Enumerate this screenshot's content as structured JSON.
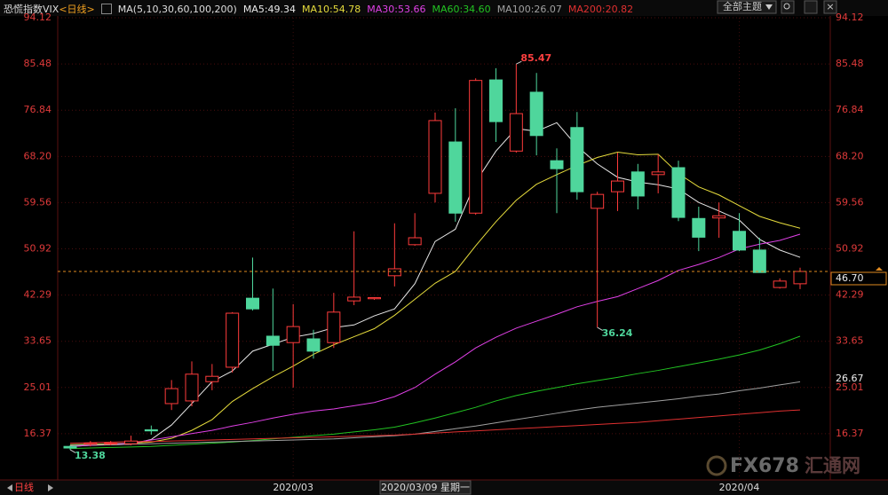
{
  "chart_data": {
    "type": "candlestick",
    "title": "恐慌指数VIX",
    "period": "<日线>",
    "ma_label": "MA(5,10,30,60,100,200)",
    "categories": [
      null,
      null,
      null,
      null,
      null,
      null,
      null,
      null,
      null,
      null,
      null,
      "2020/03",
      null,
      null,
      null,
      null,
      null,
      null,
      null,
      null,
      null,
      null,
      null,
      null,
      null,
      null,
      null,
      null,
      null,
      null,
      null,
      null,
      null,
      "2020/04",
      null,
      null,
      null
    ],
    "cursor_label": "2020/03/09 星期一",
    "candles": {
      "open": [
        14.0,
        14.4,
        14.5,
        14.5,
        17.1,
        22.0,
        22.5,
        26.1,
        28.8,
        41.7,
        34.6,
        33.4,
        34.1,
        33.4,
        41.2,
        41.6,
        45.9,
        51.7,
        61.3,
        70.9,
        57.6,
        82.5,
        69.2,
        80.2,
        67.4,
        73.6,
        58.5,
        61.6,
        65.3,
        64.8,
        66.1,
        56.6,
        56.7,
        54.2,
        50.7,
        43.7,
        44.4
      ],
      "high": [
        14.2,
        15.0,
        15.0,
        16.0,
        17.9,
        26.4,
        29.9,
        29.4,
        39.1,
        49.3,
        43.5,
        40.6,
        35.8,
        42.7,
        54.2,
        41.9,
        55.7,
        57.6,
        76.4,
        77.2,
        82.8,
        84.7,
        85.47,
        83.8,
        69.7,
        76.5,
        61.6,
        68.9,
        66.8,
        68.6,
        67.4,
        58.8,
        59.6,
        57.6,
        53.0,
        45.4,
        47.4
      ],
      "low": [
        13.38,
        14.0,
        14.2,
        14.2,
        16.2,
        20.8,
        21.5,
        24.5,
        27.8,
        39.4,
        28.1,
        25.0,
        30.4,
        32.4,
        40.4,
        41.4,
        43.9,
        51.5,
        59.6,
        56.0,
        57.3,
        70.9,
        68.9,
        68.4,
        57.6,
        60.1,
        36.24,
        58.0,
        58.3,
        61.3,
        56.1,
        50.5,
        53.0,
        50.5,
        46.5,
        43.5,
        43.4
      ],
      "close": [
        13.7,
        14.6,
        14.6,
        15.0,
        16.9,
        24.8,
        27.5,
        27.1,
        38.9,
        39.7,
        32.9,
        36.4,
        31.8,
        39.1,
        41.9,
        41.8,
        47.2,
        53.0,
        74.9,
        57.6,
        82.4,
        74.7,
        76.2,
        72.1,
        65.9,
        61.6,
        61.1,
        63.6,
        60.8,
        65.3,
        56.8,
        53.1,
        57.1,
        50.7,
        46.5,
        44.9,
        46.7
      ]
    },
    "up_color": "#ff3b3b",
    "down_color": "#4fd69c",
    "series": [
      {
        "name": "MA5:49.34",
        "color": "#e8e8e8",
        "values": [
          14.0,
          14.2,
          14.3,
          14.4,
          15.3,
          18.0,
          22.0,
          26.1,
          28.1,
          31.8,
          33.1,
          34.4,
          35.1,
          36.2,
          36.7,
          38.4,
          39.7,
          44.4,
          52.3,
          54.6,
          63.4,
          69.2,
          73.4,
          72.9,
          74.5,
          70.1,
          66.8,
          64.3,
          63.4,
          62.9,
          62.1,
          59.6,
          58.0,
          56.3,
          52.7,
          50.7,
          49.34
        ]
      },
      {
        "name": "MA10:54.78",
        "color": "#e6dc3c",
        "values": [
          14.3,
          14.4,
          14.5,
          14.6,
          14.8,
          15.5,
          17.0,
          19.0,
          22.4,
          24.8,
          27.0,
          29.0,
          31.2,
          33.0,
          34.5,
          36.0,
          38.5,
          41.5,
          44.5,
          46.7,
          51.5,
          56.0,
          60.0,
          63.0,
          64.8,
          66.5,
          68.0,
          69.0,
          68.5,
          68.6,
          65.0,
          62.5,
          61.0,
          59.0,
          57.0,
          55.8,
          54.78
        ]
      },
      {
        "name": "MA30:53.66",
        "color": "#e040e6",
        "values": [
          14.0,
          14.2,
          14.4,
          14.6,
          15.2,
          15.8,
          16.4,
          17.0,
          17.8,
          18.5,
          19.3,
          20.0,
          20.6,
          21.0,
          21.6,
          22.2,
          23.3,
          25.0,
          27.5,
          29.8,
          32.4,
          34.4,
          36.1,
          37.4,
          38.7,
          40.1,
          41.1,
          42.0,
          43.5,
          45.0,
          46.9,
          48.0,
          49.3,
          50.9,
          51.8,
          52.5,
          53.66
        ]
      },
      {
        "name": "MA60:34.60",
        "color": "#22c322",
        "values": [
          13.6,
          13.7,
          13.8,
          13.9,
          14.0,
          14.2,
          14.4,
          14.6,
          14.8,
          15.1,
          15.4,
          15.7,
          16.0,
          16.3,
          16.7,
          17.1,
          17.6,
          18.4,
          19.3,
          20.3,
          21.3,
          22.5,
          23.5,
          24.3,
          25.0,
          25.7,
          26.3,
          26.9,
          27.6,
          28.2,
          28.9,
          29.6,
          30.3,
          31.1,
          32.0,
          33.2,
          34.6
        ]
      },
      {
        "name": "MA100:26.07",
        "color": "#a0a0a0",
        "values": [
          14.2,
          14.3,
          14.3,
          14.4,
          14.5,
          14.6,
          14.7,
          14.8,
          14.9,
          15.0,
          15.1,
          15.2,
          15.3,
          15.4,
          15.6,
          15.8,
          16.0,
          16.3,
          16.8,
          17.3,
          17.8,
          18.4,
          19.0,
          19.6,
          20.2,
          20.8,
          21.3,
          21.7,
          22.1,
          22.5,
          22.9,
          23.4,
          23.8,
          24.4,
          24.9,
          25.5,
          26.07
        ]
      },
      {
        "name": "MA200:20.82",
        "color": "#e03030",
        "values": [
          14.6,
          14.7,
          14.8,
          14.9,
          14.9,
          15.0,
          15.1,
          15.2,
          15.3,
          15.4,
          15.5,
          15.6,
          15.7,
          15.8,
          15.9,
          16.0,
          16.1,
          16.3,
          16.5,
          16.7,
          16.9,
          17.1,
          17.3,
          17.5,
          17.7,
          17.9,
          18.1,
          18.3,
          18.5,
          18.8,
          19.1,
          19.4,
          19.7,
          20.0,
          20.3,
          20.6,
          20.82
        ]
      }
    ],
    "ylim": [
      7.9,
      94.12
    ],
    "yticks": [
      16.37,
      25.01,
      33.65,
      42.29,
      50.92,
      59.56,
      {
        "value": 68.2,
        "label": "68.20"
      },
      76.84,
      85.48,
      94.12
    ],
    "last_price": {
      "value": 46.7,
      "label": "46.70"
    },
    "right_marker": 26.67,
    "grid": true
  },
  "ui": {
    "theme_button": "全部主题",
    "period_button": "日线",
    "watermark": "FX678",
    "watermark_cn": "汇通网"
  }
}
